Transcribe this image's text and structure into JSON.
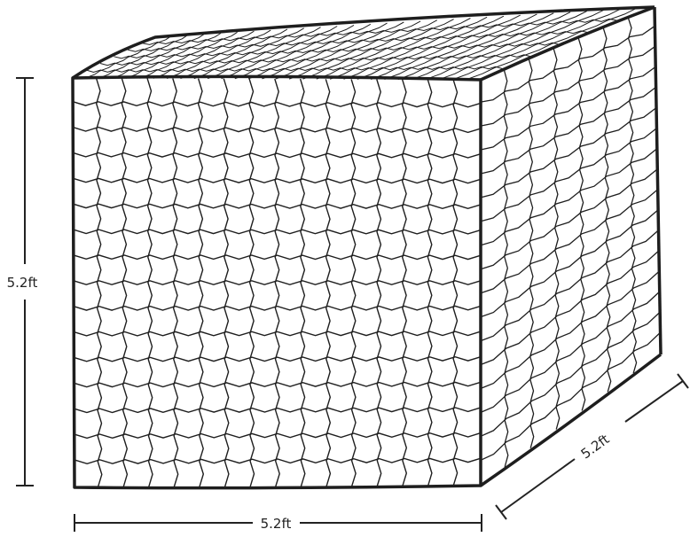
{
  "dimensions": {
    "height_label": "5.2ft",
    "width_label": "5.2ft",
    "depth_label": "5.2ft"
  },
  "colors": {
    "line": "#1e1e1e",
    "background": "#ffffff"
  }
}
